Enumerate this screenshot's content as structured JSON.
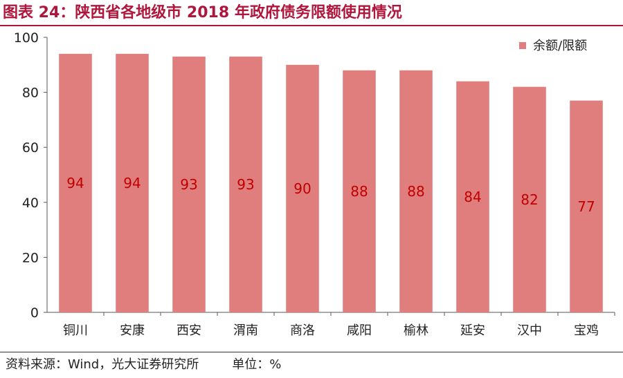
{
  "title": "图表 24：陕西省各地级市 2018 年政府债务限额使用情况",
  "footer": {
    "source": "资料来源：Wind，光大证券研究所",
    "unit": "单位：%"
  },
  "colors": {
    "bar": "#e07e7d",
    "label": "#c00000",
    "accent": "#b0163c"
  },
  "chart_data": {
    "type": "bar",
    "categories": [
      "铜川",
      "安康",
      "西安",
      "渭南",
      "商洛",
      "咸阳",
      "榆林",
      "延安",
      "汉中",
      "宝鸡"
    ],
    "series": [
      {
        "name": "余额/限额",
        "values": [
          94,
          94,
          93,
          93,
          90,
          88,
          88,
          84,
          82,
          77
        ]
      }
    ],
    "ylim": [
      0,
      100
    ],
    "yticks": [
      0,
      20,
      40,
      60,
      80,
      100
    ],
    "legend": "top-right",
    "grid": false
  }
}
